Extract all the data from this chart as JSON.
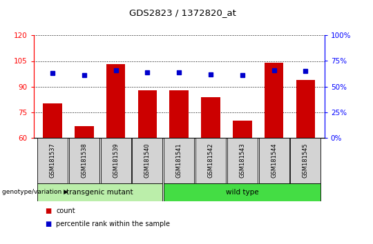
{
  "title": "GDS2823 / 1372820_at",
  "samples": [
    "GSM181537",
    "GSM181538",
    "GSM181539",
    "GSM181540",
    "GSM181541",
    "GSM181542",
    "GSM181543",
    "GSM181544",
    "GSM181545"
  ],
  "counts": [
    80,
    67,
    103,
    88,
    88,
    84,
    70,
    104,
    94
  ],
  "percentile_ranks": [
    63,
    61,
    66,
    64,
    64,
    62,
    61,
    66,
    65
  ],
  "ylim_left": [
    60,
    120
  ],
  "ylim_right": [
    0,
    100
  ],
  "yticks_left": [
    60,
    75,
    90,
    105,
    120
  ],
  "yticks_right": [
    0,
    25,
    50,
    75,
    100
  ],
  "bar_color": "#cc0000",
  "dot_color": "#0000cc",
  "transgenic_color": "#bbeeaa",
  "wildtype_color": "#44dd44",
  "transgenic_label": "transgenic mutant",
  "wildtype_label": "wild type",
  "n_transgenic": 4,
  "n_wildtype": 5,
  "genotype_label": "genotype/variation",
  "legend_count": "count",
  "legend_percentile": "percentile rank within the sample"
}
